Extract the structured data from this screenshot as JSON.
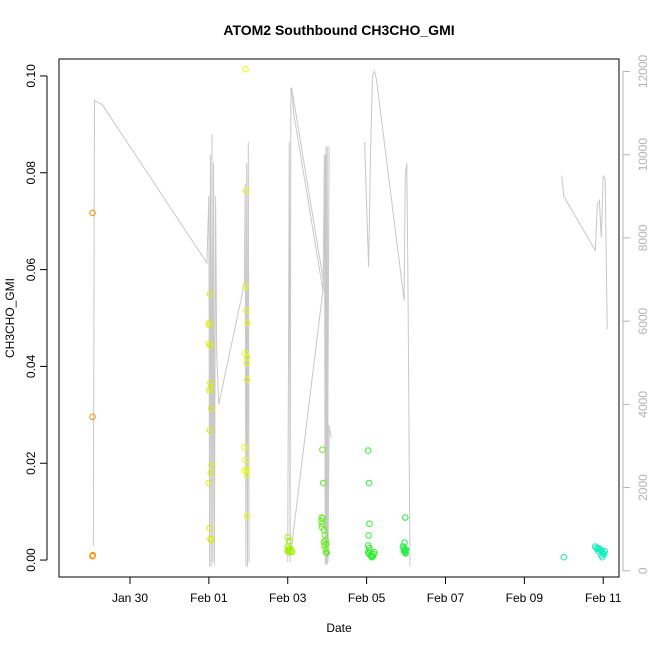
{
  "chart_data": {
    "type": "scatter",
    "title": "ATOM2 Southbound CH3CHO_GMI",
    "xlabel": "Date",
    "ylabel": "CH3CHO_GMI",
    "x_unit": "days since Jan 29 00:00",
    "xlim": [
      -0.8,
      13.4
    ],
    "ylim": [
      -0.0035,
      0.1035
    ],
    "ylim_right": [
      -150,
      12300
    ],
    "x_ticks": [
      {
        "x": 1,
        "label": "Jan 30"
      },
      {
        "x": 3,
        "label": "Feb 01"
      },
      {
        "x": 5,
        "label": "Feb 03"
      },
      {
        "x": 7,
        "label": "Feb 05"
      },
      {
        "x": 9,
        "label": "Feb 07"
      },
      {
        "x": 11,
        "label": "Feb 09"
      },
      {
        "x": 13,
        "label": "Feb 11"
      }
    ],
    "y_ticks": [
      "0.00",
      "0.02",
      "0.04",
      "0.06",
      "0.08",
      "0.10"
    ],
    "y_ticks_right": [
      "0",
      "2000",
      "4000",
      "6000",
      "8000",
      "10000",
      "12000"
    ],
    "grid": false,
    "legend": "none",
    "colors": {
      "altitude_line": "#c8c8c8",
      "right_axis": "#b3b3b3"
    },
    "series": [
      {
        "color": "#ff8c00",
        "points": [
          [
            0.05,
            0.0717
          ],
          [
            0.05,
            0.0296
          ],
          [
            0.05,
            0.0008
          ],
          [
            0.06,
            0.001
          ]
        ]
      },
      {
        "color": "#d9ef00",
        "points": [
          [
            3.0,
            0.049
          ],
          [
            3.01,
            0.0486
          ],
          [
            3.03,
            0.055
          ],
          [
            3.0,
            0.0447
          ],
          [
            3.04,
            0.0443
          ],
          [
            3.02,
            0.035
          ],
          [
            3.04,
            0.0366
          ],
          [
            3.05,
            0.0356
          ],
          [
            3.06,
            0.0313
          ],
          [
            3.03,
            0.0268
          ],
          [
            3.07,
            0.0196
          ],
          [
            3.05,
            0.018
          ],
          [
            3.0,
            0.0159
          ],
          [
            3.02,
            0.0066
          ],
          [
            3.04,
            0.0044
          ],
          [
            3.06,
            0.0041
          ]
        ]
      },
      {
        "color": "#e5ff00",
        "points": [
          [
            3.93,
            0.1014
          ],
          [
            3.95,
            0.0763
          ],
          [
            3.93,
            0.0565
          ],
          [
            3.95,
            0.0515
          ],
          [
            3.98,
            0.049
          ],
          [
            3.93,
            0.0427
          ],
          [
            3.97,
            0.0419
          ],
          [
            3.96,
            0.0407
          ],
          [
            3.97,
            0.0373
          ],
          [
            3.91,
            0.0233
          ],
          [
            3.93,
            0.0207
          ],
          [
            3.96,
            0.0188
          ],
          [
            3.91,
            0.0185
          ],
          [
            3.96,
            0.0177
          ],
          [
            3.97,
            0.0091
          ]
        ]
      },
      {
        "color": "#a0ef00",
        "points": [
          [
            5.0,
            0.0047
          ],
          [
            5.04,
            0.0039
          ],
          [
            5.0,
            0.0028
          ],
          [
            5.06,
            0.0024
          ],
          [
            5.03,
            0.0023
          ],
          [
            5.09,
            0.002
          ],
          [
            5.0,
            0.0018
          ],
          [
            5.05,
            0.0016
          ],
          [
            5.11,
            0.0017
          ],
          [
            5.02,
            0.0021
          ]
        ]
      },
      {
        "color": "#66ee22",
        "points": [
          [
            5.88,
            0.0228
          ],
          [
            5.9,
            0.0159
          ],
          [
            5.86,
            0.0088
          ],
          [
            5.89,
            0.0086
          ],
          [
            5.86,
            0.008
          ],
          [
            5.88,
            0.0075
          ],
          [
            5.87,
            0.0068
          ],
          [
            5.92,
            0.0062
          ],
          [
            5.94,
            0.0052
          ],
          [
            5.96,
            0.0041
          ],
          [
            5.92,
            0.0037
          ],
          [
            5.98,
            0.0033
          ],
          [
            5.93,
            0.003
          ],
          [
            5.96,
            0.0023
          ],
          [
            5.97,
            0.0016
          ],
          [
            5.99,
            0.0015
          ]
        ]
      },
      {
        "color": "#33ee33",
        "points": [
          [
            7.04,
            0.0226
          ],
          [
            7.06,
            0.0159
          ],
          [
            7.07,
            0.0075
          ],
          [
            7.05,
            0.0051
          ],
          [
            7.04,
            0.003
          ],
          [
            7.07,
            0.0025
          ],
          [
            7.08,
            0.002
          ],
          [
            7.04,
            0.0016
          ],
          [
            7.06,
            0.0013
          ],
          [
            7.1,
            0.001
          ],
          [
            7.12,
            0.0009
          ],
          [
            7.14,
            0.0008
          ],
          [
            7.13,
            0.0006
          ],
          [
            7.16,
            0.0008
          ],
          [
            7.18,
            0.0012
          ],
          [
            7.2,
            0.0016
          ]
        ]
      },
      {
        "color": "#22ee44",
        "points": [
          [
            7.98,
            0.0088
          ],
          [
            7.96,
            0.0036
          ],
          [
            7.92,
            0.0028
          ],
          [
            7.94,
            0.0024
          ],
          [
            7.96,
            0.0021
          ],
          [
            7.98,
            0.002
          ],
          [
            8.0,
            0.0022
          ],
          [
            7.95,
            0.0018
          ],
          [
            7.97,
            0.0016
          ],
          [
            7.99,
            0.0014
          ]
        ]
      },
      {
        "color": "#22ee99",
        "points": [
          [
            12.0,
            0.0006
          ]
        ]
      },
      {
        "color": "#11eebb",
        "points": [
          [
            12.8,
            0.0028
          ],
          [
            12.83,
            0.0025
          ],
          [
            12.86,
            0.0023
          ],
          [
            12.9,
            0.0024
          ],
          [
            12.93,
            0.0021
          ],
          [
            12.96,
            0.0019
          ],
          [
            12.88,
            0.0018
          ],
          [
            12.98,
            0.0017
          ],
          [
            13.0,
            0.0014
          ],
          [
            12.95,
            0.001
          ],
          [
            12.98,
            0.0006
          ],
          [
            13.02,
            0.0012
          ],
          [
            13.04,
            0.0018
          ]
        ]
      }
    ],
    "altitude_segments": [
      [
        [
          0.07,
          600
        ],
        [
          0.1,
          11300
        ],
        [
          0.3,
          11200
        ],
        [
          2.95,
          7400
        ],
        [
          3.0,
          9000
        ]
      ],
      [
        [
          3.0,
          9000
        ],
        [
          3.02,
          100
        ],
        [
          3.04,
          10000
        ],
        [
          3.06,
          100
        ],
        [
          3.08,
          10500
        ],
        [
          3.1,
          200
        ],
        [
          3.12,
          9800
        ],
        [
          3.14,
          150
        ],
        [
          3.17,
          9000
        ],
        [
          3.2,
          5200
        ],
        [
          3.25,
          4000
        ],
        [
          3.9,
          6900
        ],
        [
          3.92,
          9300
        ],
        [
          3.94,
          100
        ],
        [
          3.96,
          9800
        ],
        [
          3.98,
          100
        ],
        [
          4.0,
          10300
        ],
        [
          4.02,
          200
        ]
      ],
      [
        [
          5.0,
          200
        ],
        [
          5.04,
          10300
        ],
        [
          5.06,
          200
        ],
        [
          5.08,
          11600
        ],
        [
          5.1,
          11600
        ],
        [
          5.15,
          11000
        ],
        [
          5.9,
          6700
        ],
        [
          5.93,
          9700
        ],
        [
          5.95,
          9800
        ],
        [
          5.97,
          150
        ],
        [
          6.0,
          10200
        ],
        [
          6.02,
          200
        ],
        [
          6.05,
          3500
        ],
        [
          6.1,
          3200
        ]
      ],
      [
        [
          5.1,
          11600
        ],
        [
          5.9,
          7000
        ],
        [
          5.95,
          10000
        ],
        [
          6.0,
          150
        ],
        [
          6.05,
          10200
        ]
      ],
      [
        [
          5.1,
          600
        ],
        [
          5.9,
          6800
        ],
        [
          5.93,
          10000
        ],
        [
          5.95,
          150
        ],
        [
          5.97,
          10200
        ],
        [
          6.02,
          200
        ]
      ],
      [
        [
          6.95,
          10300
        ],
        [
          7.05,
          7300
        ],
        [
          7.1,
          10000
        ],
        [
          7.15,
          11900
        ],
        [
          7.2,
          12000
        ],
        [
          7.25,
          11800
        ],
        [
          7.95,
          6500
        ],
        [
          7.98,
          9500
        ],
        [
          8.02,
          9800
        ],
        [
          8.05,
          6800
        ],
        [
          8.1,
          100
        ]
      ],
      [
        [
          11.95,
          9500
        ],
        [
          12.0,
          9000
        ],
        [
          12.8,
          7700
        ],
        [
          12.85,
          8800
        ],
        [
          12.9,
          8900
        ],
        [
          12.95,
          8000
        ],
        [
          13.0,
          9500
        ],
        [
          13.05,
          9400
        ],
        [
          13.1,
          5800
        ]
      ]
    ]
  }
}
